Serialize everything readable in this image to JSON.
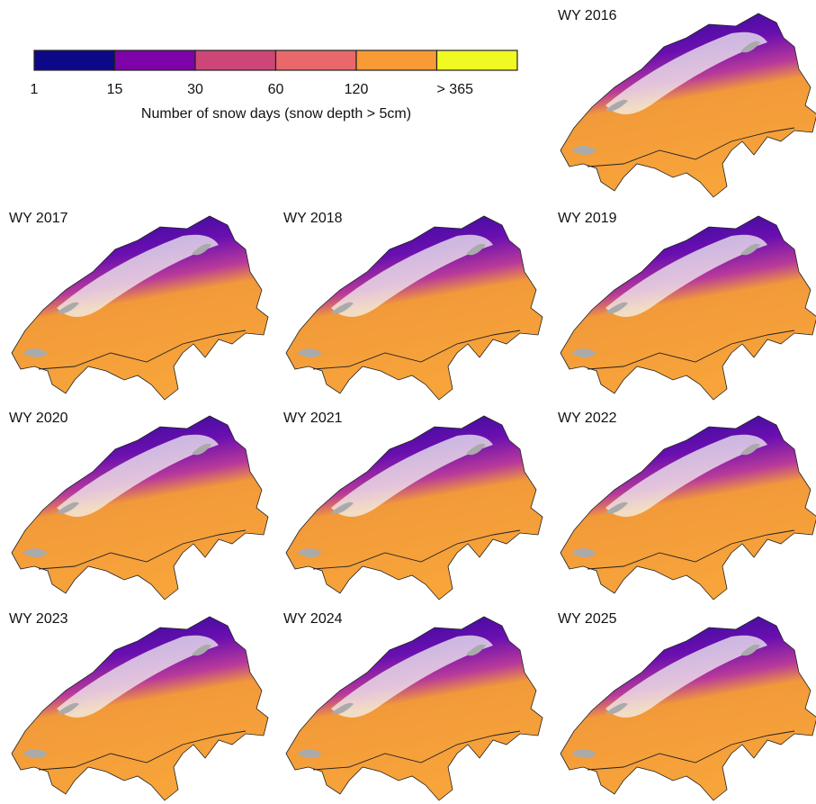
{
  "legend": {
    "title": "Number of snow days (snow depth > 5cm)",
    "ticks": [
      "1",
      "15",
      "30",
      "60",
      "120",
      "> 365"
    ],
    "colors": [
      "#0d0887",
      "#7e03a8",
      "#cc4778",
      "#e8686b",
      "#f89b36",
      "#f0f921"
    ]
  },
  "panels": [
    "WY 2016",
    "WY 2017",
    "WY 2018",
    "WY 2019",
    "WY 2020",
    "WY 2021",
    "WY 2022",
    "WY 2023",
    "WY 2024",
    "WY 2025"
  ]
}
